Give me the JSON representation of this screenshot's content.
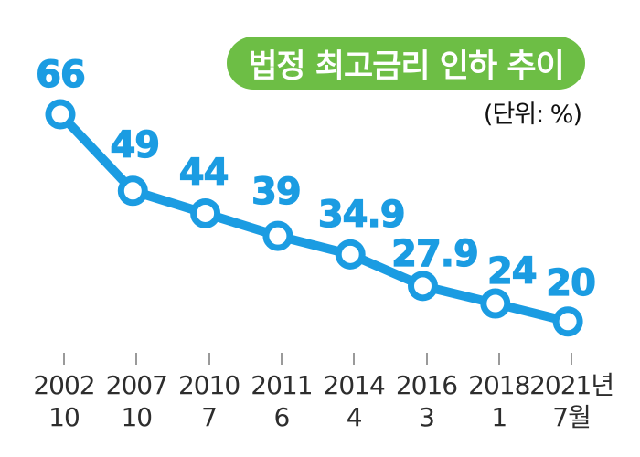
{
  "chart_data": {
    "type": "line",
    "title": "법정 최고금리 인하 추이",
    "unit_label": "(단위: %)",
    "series_name": "법정 최고금리",
    "categories": [
      {
        "year": "2002",
        "month": "10"
      },
      {
        "year": "2007",
        "month": "10"
      },
      {
        "year": "2010",
        "month": "7"
      },
      {
        "year": "2011",
        "month": "6"
      },
      {
        "year": "2014",
        "month": "4"
      },
      {
        "year": "2016",
        "month": "3"
      },
      {
        "year": "2018",
        "month": "1"
      },
      {
        "year": "2021년",
        "month": "7월"
      }
    ],
    "values": [
      66,
      49,
      44,
      39,
      34.9,
      27.9,
      24,
      20
    ],
    "ylim": [
      18,
      70
    ],
    "grid": false,
    "legend": "none",
    "marker": "open-circle",
    "colors": {
      "line": "#1b9ce2",
      "marker_fill": "#ffffff",
      "value_label": "#1b9ce2",
      "title_bg": "#6dbe45",
      "title_text": "#ffffff",
      "axis_text": "#2d2d2d",
      "tick": "#9a9a9a"
    }
  }
}
